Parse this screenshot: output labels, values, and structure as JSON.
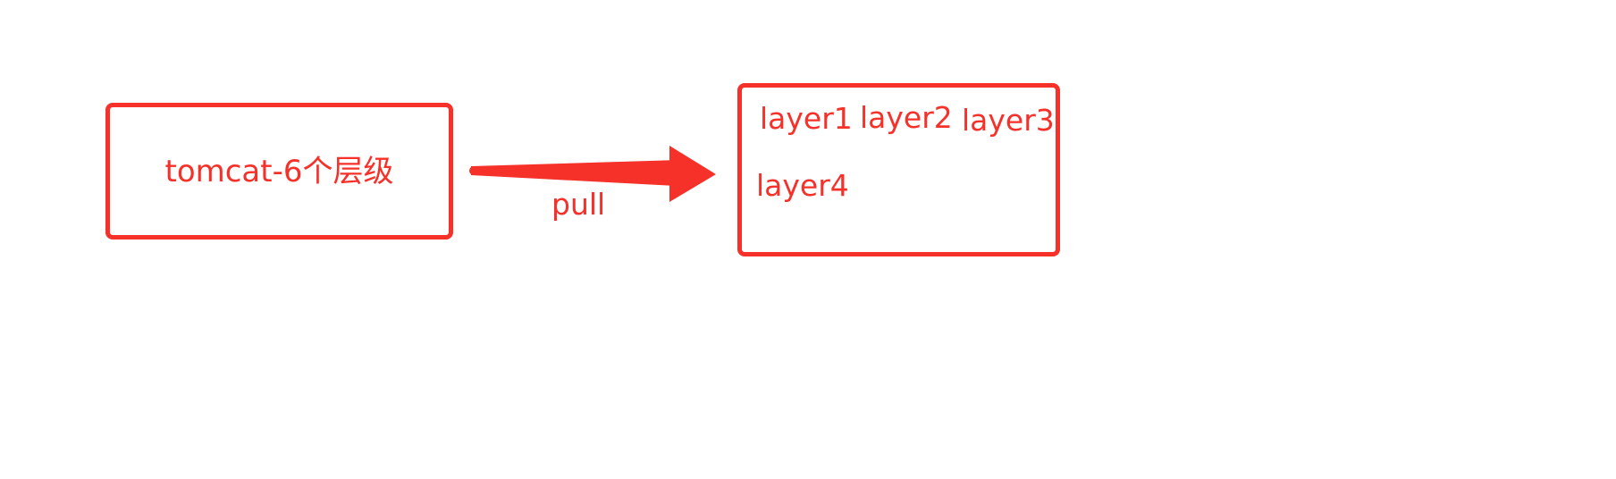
{
  "diagram": {
    "source": {
      "label": "tomcat-6个层级"
    },
    "target": {
      "layers": [
        "layer1",
        "layer2",
        "layer3",
        "layer4"
      ]
    },
    "edge": {
      "label": "pull"
    },
    "colors": {
      "stroke": "#f5312a",
      "background": "#ffffff"
    }
  }
}
